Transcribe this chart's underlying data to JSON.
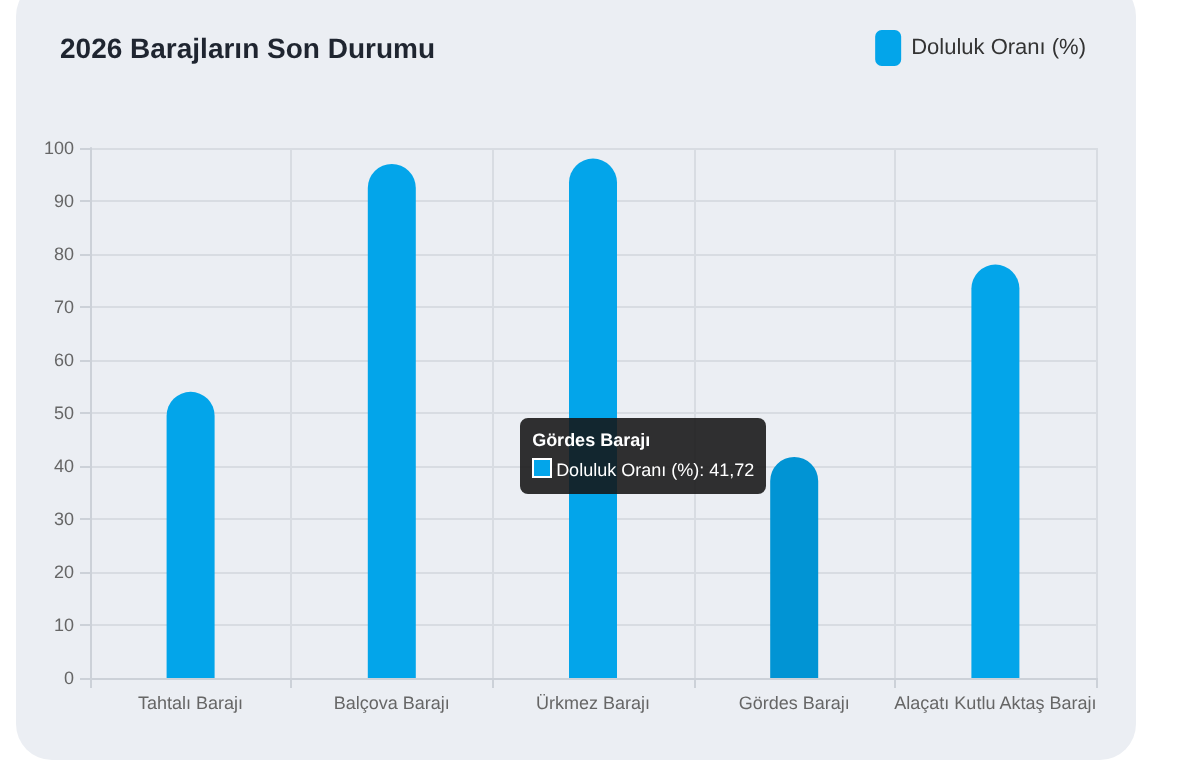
{
  "chart_data": {
    "type": "bar",
    "title": "2026 Barajların Son Durumu",
    "categories": [
      "Tahtalı Barajı",
      "Balçova Barajı",
      "Ürkmez Barajı",
      "Gördes Barajı",
      "Alaçatı Kutlu Aktaş Barajı"
    ],
    "series": [
      {
        "name": "Doluluk Oranı (%)",
        "color": "#03a5ea",
        "colors": [
          "#03a5ea",
          "#03a5ea",
          "#03a5ea",
          "#0194d4",
          "#03a5ea"
        ],
        "values": [
          54,
          97,
          98,
          41.72,
          78
        ]
      }
    ],
    "ylim": [
      0,
      100
    ],
    "yticks": [
      0,
      10,
      20,
      30,
      40,
      50,
      60,
      70,
      80,
      90,
      100
    ],
    "grid": true,
    "legend": "top right",
    "annotations": [
      {
        "text": "Gördes Barajı\nDoluluk Oranı (%): 41,72",
        "x": "Gördes Barajı",
        "y": 41.72
      }
    ]
  }
}
